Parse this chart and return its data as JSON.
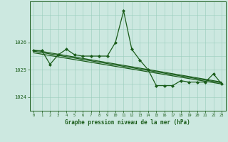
{
  "title": "Graphe pression niveau de la mer (hPa)",
  "background_color": "#cce8e0",
  "grid_color": "#99ccbb",
  "line_color": "#1a5c1a",
  "xlim": [
    -0.5,
    23.5
  ],
  "ylim": [
    1023.5,
    1027.5
  ],
  "yticks": [
    1024,
    1025,
    1026
  ],
  "xticks": [
    0,
    1,
    2,
    3,
    4,
    5,
    6,
    7,
    8,
    9,
    10,
    11,
    12,
    13,
    14,
    15,
    16,
    17,
    18,
    19,
    20,
    21,
    22,
    23
  ],
  "series": [
    {
      "x": [
        0,
        23
      ],
      "y": [
        1025.72,
        1024.55
      ],
      "marker": null,
      "markersize": 0,
      "linewidth": 0.9,
      "linestyle": "-"
    },
    {
      "x": [
        0,
        23
      ],
      "y": [
        1025.68,
        1024.52
      ],
      "marker": null,
      "markersize": 0,
      "linewidth": 0.9,
      "linestyle": "-"
    },
    {
      "x": [
        0,
        23
      ],
      "y": [
        1025.62,
        1024.48
      ],
      "marker": null,
      "markersize": 0,
      "linewidth": 0.9,
      "linestyle": "-"
    },
    {
      "x": [
        0,
        1,
        2,
        3,
        4,
        5,
        6,
        7,
        8,
        9,
        10,
        11,
        12,
        13,
        14,
        15,
        16,
        17,
        18,
        19,
        20,
        21,
        22,
        23
      ],
      "y": [
        1025.7,
        1025.7,
        1025.2,
        1025.55,
        1025.75,
        1025.55,
        1025.5,
        1025.5,
        1025.5,
        1025.5,
        1026.0,
        1027.15,
        1025.75,
        1025.35,
        1025.0,
        1024.42,
        1024.42,
        1024.42,
        1024.6,
        1024.55,
        1024.55,
        1024.55,
        1024.85,
        1024.48
      ],
      "marker": "D",
      "markersize": 2.0,
      "linewidth": 0.9,
      "linestyle": "-"
    }
  ]
}
